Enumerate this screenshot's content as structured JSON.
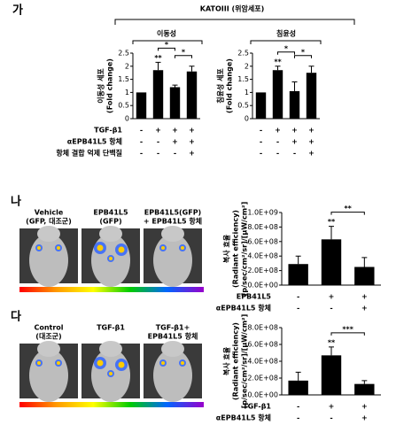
{
  "panel_a": {
    "label": "가",
    "header": "KATOIII (위암세포)"
  },
  "panel_b": {
    "label": "나",
    "images": [
      [
        "Vehicle",
        "(GFP, 대조군)"
      ],
      [
        "EPB41L5",
        "(GFP)"
      ],
      [
        "EPB41L5(GFP)",
        "+ EPB41L5 항체"
      ]
    ]
  },
  "panel_c": {
    "label": "다",
    "images": [
      [
        "Control",
        "(대조군)"
      ],
      [
        "TGF-β1"
      ],
      [
        "TGF-β1+",
        "EPB41L5 항체"
      ]
    ]
  },
  "chart_data": [
    {
      "type": "bar",
      "title": "이동성",
      "ylabel": [
        "이동성 세포",
        "(Fold change)"
      ],
      "color": "#000000",
      "values": [
        1,
        1.85,
        1.2,
        1.8
      ],
      "errors": [
        0,
        0.3,
        0.08,
        0.2
      ],
      "bar_labels": [
        null,
        "**",
        null,
        null
      ],
      "brackets": [
        {
          "label": "*",
          "between": [
            1,
            2
          ]
        },
        {
          "label": "*",
          "between": [
            2,
            3
          ]
        }
      ],
      "ylim": [
        0,
        2.5
      ],
      "yticks": [
        0,
        0.5,
        1,
        1.5,
        2,
        2.5
      ],
      "conditions": [
        {
          "label": "TGF-β1",
          "signs": [
            "-",
            "+",
            "+",
            "+"
          ]
        },
        {
          "label": "αEPB41L5 항체",
          "signs": [
            "-",
            "-",
            "+",
            "+"
          ]
        },
        {
          "label": "항체 결합 억제 단백질",
          "signs": [
            "-",
            "-",
            "-",
            "+"
          ]
        }
      ]
    },
    {
      "type": "bar",
      "title": "침윤성",
      "ylabel": [
        "침윤성 세포",
        "(Fold change)"
      ],
      "color": "#000000",
      "values": [
        1,
        1.85,
        1.05,
        1.75
      ],
      "errors": [
        0,
        0.15,
        0.35,
        0.25
      ],
      "bar_labels": [
        null,
        "**",
        null,
        null
      ],
      "brackets": [
        {
          "label": "*",
          "between": [
            1,
            2
          ]
        },
        {
          "label": "*",
          "between": [
            2,
            3
          ]
        }
      ],
      "ylim": [
        0,
        2.5
      ],
      "yticks": [
        0,
        0.5,
        1,
        1.5,
        2,
        2.5
      ],
      "conditions": [
        {
          "signs": [
            "-",
            "+",
            "+",
            "+"
          ]
        },
        {
          "signs": [
            "-",
            "-",
            "+",
            "+"
          ]
        },
        {
          "signs": [
            "-",
            "-",
            "-",
            "+"
          ]
        }
      ]
    },
    {
      "type": "bar",
      "ylabel": [
        "복사 효율",
        "(Radiant efficiency)",
        "[p/sec/cm²/sr]/[μW/cm²]"
      ],
      "color": "#000000",
      "values": [
        290000000,
        630000000,
        250000000
      ],
      "errors": [
        110000000,
        180000000,
        130000000
      ],
      "bar_labels": [
        null,
        "**",
        null
      ],
      "brackets": [
        {
          "label": "**",
          "between": [
            1,
            2
          ]
        }
      ],
      "ylim": [
        0,
        1000000000
      ],
      "yticks": [
        {
          "value": 0,
          "label": "0.0E+00"
        },
        {
          "value": 200000000,
          "label": "2.0E+08"
        },
        {
          "value": 400000000,
          "label": "4.0E+08"
        },
        {
          "value": 600000000,
          "label": "6.0E+08"
        },
        {
          "value": 800000000,
          "label": "8.0E+08"
        },
        {
          "value": 1000000000,
          "label": "1.0E+09"
        }
      ],
      "conditions": [
        {
          "label": "EPB41L5",
          "signs": [
            "-",
            "+",
            "+"
          ]
        },
        {
          "label": "αEPB41L5 항체",
          "signs": [
            "-",
            "-",
            "+"
          ]
        }
      ]
    },
    {
      "type": "bar",
      "ylabel": [
        "복사 효율",
        "(Radiant efficiency)",
        "[p/sec/cm²/sr]/[μW/cm²]"
      ],
      "color": "#000000",
      "values": [
        170000000,
        470000000,
        130000000
      ],
      "errors": [
        100000000,
        100000000,
        40000000
      ],
      "bar_labels": [
        null,
        "**",
        null
      ],
      "brackets": [
        {
          "label": "***",
          "between": [
            1,
            2
          ]
        }
      ],
      "ylim": [
        0,
        800000000
      ],
      "yticks": [
        {
          "value": 0,
          "label": "0.0E+00"
        },
        {
          "value": 200000000,
          "label": "2.0E+08"
        },
        {
          "value": 400000000,
          "label": "4.0E+08"
        },
        {
          "value": 600000000,
          "label": "6.0E+08"
        },
        {
          "value": 800000000,
          "label": "8.0E+08"
        }
      ],
      "conditions": [
        {
          "label": "TGF-β1",
          "signs": [
            "-",
            "+",
            "+"
          ]
        },
        {
          "label": "αEPB41L5 항체",
          "signs": [
            "-",
            "-",
            "+"
          ]
        }
      ]
    }
  ]
}
